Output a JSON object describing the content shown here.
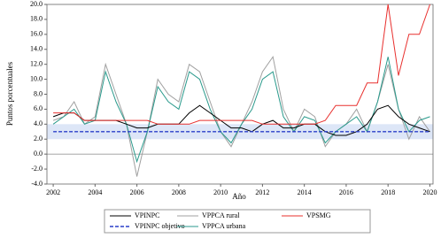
{
  "chart_data": {
    "type": "line",
    "y_label": "Puntos porcentuales",
    "x_label": "Año",
    "x": [
      2002,
      2002.5,
      2003,
      2003.5,
      2004,
      2004.5,
      2005,
      2005.5,
      2006,
      2006.5,
      2007,
      2007.5,
      2008,
      2008.5,
      2009,
      2009.5,
      2010,
      2010.5,
      2011,
      2011.5,
      2012,
      2012.5,
      2013,
      2013.5,
      2014,
      2014.5,
      2015,
      2015.5,
      2016,
      2016.5,
      2017,
      2017.5,
      2018,
      2018.5,
      2019,
      2019.5,
      2020
    ],
    "xlim": [
      2001.7,
      2020.15
    ],
    "xticks": [
      2002,
      2004,
      2006,
      2008,
      2010,
      2012,
      2014,
      2016,
      2018,
      2020
    ],
    "ylim": [
      -4,
      20
    ],
    "yticks": [
      {
        "value": -4,
        "label": "-4.0"
      },
      {
        "value": -2,
        "label": "-2.0"
      },
      {
        "value": 0,
        "label": "0.0"
      },
      {
        "value": 2,
        "label": "2.0"
      },
      {
        "value": 4,
        "label": "4.0"
      },
      {
        "value": 6,
        "label": "6.0"
      },
      {
        "value": 8,
        "label": "8.0"
      },
      {
        "value": 10,
        "label": "10.0"
      },
      {
        "value": 12,
        "label": "12.0"
      },
      {
        "value": 14,
        "label": "14.0"
      },
      {
        "value": 16,
        "label": "16.0"
      },
      {
        "value": 18,
        "label": "18.0"
      },
      {
        "value": 20,
        "label": "20.0"
      }
    ],
    "target_band": [
      2,
      4
    ],
    "band_color": "#dde6f7",
    "series": [
      {
        "name": "VPINPC",
        "color": "#000000",
        "dashed": false,
        "values": [
          5,
          5.5,
          5.5,
          4.5,
          4.5,
          4.5,
          4.5,
          4,
          3.5,
          3.5,
          4,
          4,
          4,
          5.5,
          6.5,
          5.5,
          4.5,
          3.5,
          3.5,
          3,
          4,
          4.5,
          3.5,
          3.5,
          4,
          4,
          3,
          2.5,
          2.5,
          3,
          4,
          6,
          6.5,
          5,
          4,
          3.5,
          3
        ]
      },
      {
        "name": "VPPCA rural",
        "color": "#a0a0a0",
        "dashed": false,
        "values": [
          4.5,
          5,
          7,
          4,
          5,
          12,
          8,
          4,
          -3,
          3,
          10,
          8,
          7,
          12,
          11,
          7,
          3,
          1,
          4,
          7,
          11,
          13,
          6,
          3,
          6,
          5,
          1,
          3,
          4,
          6,
          3,
          7,
          12,
          6,
          2,
          5,
          3
        ]
      },
      {
        "name": "VPSMG",
        "color": "#e8302e",
        "dashed": false,
        "values": [
          5.5,
          5.5,
          5.5,
          4.5,
          4.5,
          4.5,
          4.5,
          4.5,
          4.5,
          4.5,
          4,
          4,
          4,
          4,
          4.5,
          4.5,
          4.5,
          4.5,
          4.5,
          4.5,
          4,
          4,
          4,
          4,
          4,
          4,
          4.5,
          6.5,
          6.5,
          6.5,
          9.5,
          9.5,
          20,
          10.5,
          16,
          16,
          20
        ]
      },
      {
        "name": "VPINPC objetivo",
        "color": "#2a3fc9",
        "dashed": true,
        "values": [
          3,
          3,
          3,
          3,
          3,
          3,
          3,
          3,
          3,
          3,
          3,
          3,
          3,
          3,
          3,
          3,
          3,
          3,
          3,
          3,
          3,
          3,
          3,
          3,
          3,
          3,
          3,
          3,
          3,
          3,
          3,
          3,
          3,
          3,
          3,
          3,
          3
        ]
      },
      {
        "name": "VPPCA urbana",
        "color": "#2a9a8c",
        "dashed": false,
        "values": [
          4,
          5,
          6,
          4,
          4.5,
          11,
          7,
          4,
          -1,
          3,
          9,
          7,
          6,
          11,
          10,
          6,
          3,
          1.5,
          4,
          6,
          10,
          11,
          5,
          3,
          5,
          4.5,
          1.5,
          3,
          4,
          5,
          3,
          7,
          13,
          6,
          3,
          4.5,
          5
        ]
      }
    ]
  }
}
